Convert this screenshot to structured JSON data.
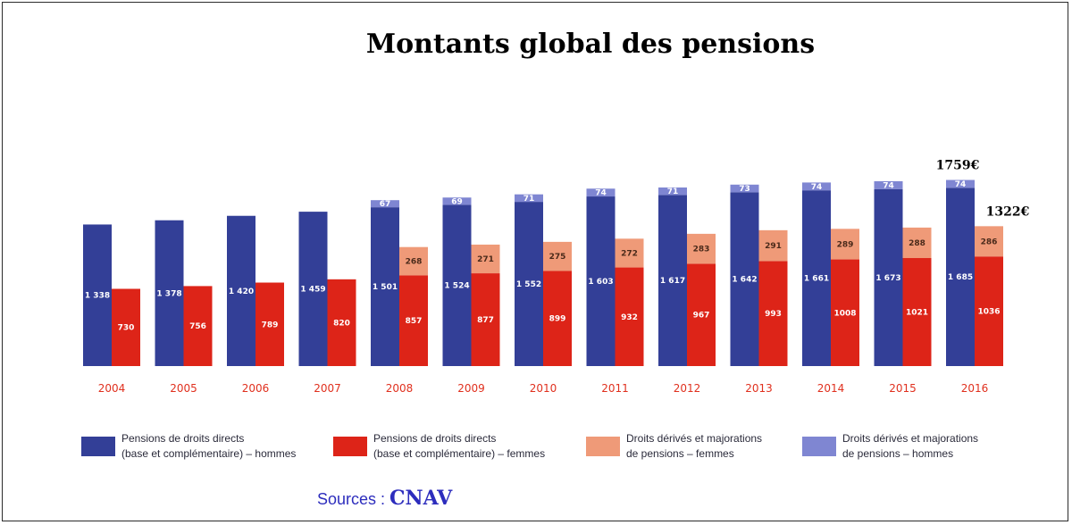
{
  "chart_data": {
    "type": "bar",
    "title": "Montants global des pensions",
    "categories": [
      "2004",
      "2005",
      "2006",
      "2007",
      "2008",
      "2009",
      "2010",
      "2011",
      "2012",
      "2013",
      "2014",
      "2015",
      "2016"
    ],
    "series": [
      {
        "name": "Pensions de droits directs (base et complémentaire) – hommes",
        "stack": "hommes",
        "values": [
          1338,
          1378,
          1420,
          1459,
          1501,
          1524,
          1552,
          1603,
          1617,
          1642,
          1661,
          1673,
          1685
        ],
        "labels": [
          "1 338",
          "1 378",
          "1 420",
          "1 459",
          "1 501",
          "1 524",
          "1 552",
          "1 603",
          "1 617",
          "1 642",
          "1 661",
          "1 673",
          "1 685"
        ]
      },
      {
        "name": "Droits dérivés et majorations de pensions – hommes",
        "stack": "hommes",
        "values": [
          null,
          null,
          null,
          null,
          67,
          69,
          71,
          74,
          71,
          73,
          74,
          74,
          74
        ],
        "labels": [
          "",
          "",
          "",
          "",
          "67",
          "69",
          "71",
          "74",
          "71",
          "73",
          "74",
          "74",
          "74"
        ]
      },
      {
        "name": "Pensions de droits directs (base et complémentaire) – femmes",
        "stack": "femmes",
        "values": [
          730,
          756,
          789,
          820,
          857,
          877,
          899,
          932,
          967,
          993,
          1008,
          1021,
          1036
        ],
        "labels": [
          "730",
          "756",
          "789",
          "820",
          "857",
          "877",
          "899",
          "932",
          "967",
          "993",
          "1008",
          "1021",
          "1036"
        ]
      },
      {
        "name": "Droits dérivés et majorations de pensions – femmes",
        "stack": "femmes",
        "values": [
          null,
          null,
          null,
          null,
          268,
          271,
          275,
          272,
          283,
          291,
          289,
          288,
          286
        ],
        "labels": [
          "",
          "",
          "",
          "",
          "268",
          "271",
          "275",
          "272",
          "283",
          "291",
          "289",
          "288",
          "286"
        ]
      }
    ],
    "legend": [
      {
        "lines": [
          "Pensions de droits directs",
          "(base et complémentaire) – hommes"
        ],
        "color": "#333f97"
      },
      {
        "lines": [
          "Pensions de droits directs",
          "(base et complémentaire) – femmes"
        ],
        "color": "#dd2418"
      },
      {
        "lines": [
          "Droits dérivés et majorations",
          "de pensions – femmes"
        ],
        "color": "#ef9a78"
      },
      {
        "lines": [
          "Droits dérivés et majorations",
          "de pensions – hommes"
        ],
        "color": "#7f86d2"
      }
    ],
    "annotations": [
      {
        "text": "1759€",
        "target": "hommes-2016"
      },
      {
        "text": "1322€",
        "target": "femmes-2016"
      }
    ],
    "legend_position": "bottom",
    "grid": false,
    "colors": {
      "men_direct": "#333f97",
      "men_derived": "#7f86d2",
      "women_direct": "#dd2418",
      "women_derived": "#ef9a78",
      "year_label": "#e0301e",
      "source": "#2d2dbd"
    }
  },
  "source": {
    "prefix": "Sources : ",
    "name": "CNAV"
  }
}
